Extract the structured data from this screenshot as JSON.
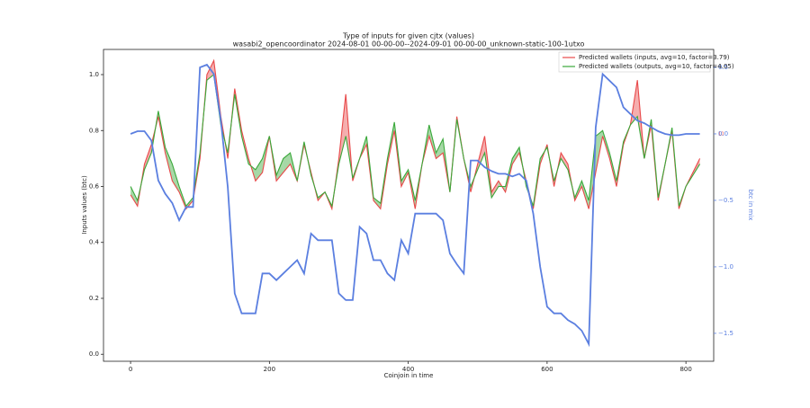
{
  "chart_data": {
    "type": "line",
    "title": "Type of inputs for given cjtx (values)",
    "subtitle": "wasabi2_opencoordinator 2024-08-01 00-00-00--2024-09-01 00-00-00_unknown-static-100-1utxo",
    "xlabel": "Coinjoin in time",
    "ylabel": "Inputs values (btc)",
    "y2label": "btc in mix",
    "extra_tick": "10",
    "legend": "upper right",
    "xlim": [
      -39,
      840
    ],
    "ylim": [
      -0.025,
      1.09
    ],
    "y2lim": [
      -1.71,
      0.635
    ],
    "xticks": [
      0,
      200,
      400,
      600,
      800
    ],
    "yticks": [
      {
        "value": 0,
        "label": "0.0"
      },
      0.2,
      0.4,
      0.6,
      0.8,
      {
        "value": 1,
        "label": "1.0"
      }
    ],
    "y2ticks": [
      0.5,
      {
        "value": 0,
        "label": "0.0"
      },
      {
        "value": -0.5,
        "label": "−0.5"
      },
      {
        "value": -1,
        "label": "−1.0"
      },
      {
        "value": -1.5,
        "label": "−1.5"
      }
    ],
    "x": [
      0,
      10,
      20,
      30,
      40,
      50,
      60,
      70,
      80,
      90,
      100,
      110,
      120,
      130,
      140,
      150,
      160,
      170,
      180,
      190,
      200,
      210,
      220,
      230,
      240,
      250,
      260,
      270,
      280,
      290,
      300,
      310,
      320,
      330,
      340,
      350,
      360,
      370,
      380,
      390,
      400,
      410,
      420,
      430,
      440,
      450,
      460,
      470,
      480,
      490,
      500,
      510,
      520,
      530,
      540,
      550,
      560,
      570,
      580,
      590,
      600,
      610,
      620,
      630,
      640,
      650,
      660,
      670,
      680,
      690,
      700,
      710,
      720,
      730,
      740,
      750,
      760,
      770,
      780,
      790,
      800,
      810,
      820
    ],
    "series": [
      {
        "name": "Predicted wallets (inputs, avg=10, factor=3.79)",
        "color": "#e8494a",
        "values": [
          0.57,
          0.53,
          0.68,
          0.75,
          0.85,
          0.72,
          0.62,
          0.58,
          0.52,
          0.55,
          0.7,
          1.0,
          1.05,
          0.85,
          0.7,
          0.95,
          0.8,
          0.7,
          0.62,
          0.65,
          0.78,
          0.62,
          0.65,
          0.68,
          0.62,
          0.75,
          0.65,
          0.55,
          0.58,
          0.52,
          0.7,
          0.93,
          0.62,
          0.7,
          0.75,
          0.55,
          0.52,
          0.68,
          0.8,
          0.6,
          0.65,
          0.52,
          0.68,
          0.78,
          0.7,
          0.72,
          0.58,
          0.85,
          0.7,
          0.58,
          0.68,
          0.78,
          0.58,
          0.62,
          0.58,
          0.68,
          0.72,
          0.62,
          0.52,
          0.68,
          0.75,
          0.6,
          0.72,
          0.68,
          0.55,
          0.6,
          0.52,
          0.65,
          0.78,
          0.7,
          0.6,
          0.75,
          0.82,
          0.98,
          0.7,
          0.82,
          0.55,
          0.68,
          0.8,
          0.52,
          0.6,
          0.65,
          0.7
        ]
      },
      {
        "name": "Predicted wallets (outputs, avg=10, factor=4.05)",
        "color": "#3aa83a",
        "values": [
          0.6,
          0.55,
          0.66,
          0.72,
          0.87,
          0.74,
          0.68,
          0.6,
          0.53,
          0.56,
          0.72,
          0.98,
          1.0,
          0.82,
          0.72,
          0.93,
          0.78,
          0.68,
          0.66,
          0.7,
          0.78,
          0.64,
          0.7,
          0.72,
          0.62,
          0.76,
          0.64,
          0.56,
          0.58,
          0.53,
          0.68,
          0.78,
          0.63,
          0.7,
          0.78,
          0.56,
          0.54,
          0.7,
          0.83,
          0.62,
          0.66,
          0.55,
          0.68,
          0.82,
          0.72,
          0.77,
          0.58,
          0.84,
          0.7,
          0.6,
          0.66,
          0.72,
          0.56,
          0.6,
          0.6,
          0.7,
          0.74,
          0.6,
          0.53,
          0.7,
          0.74,
          0.62,
          0.7,
          0.66,
          0.56,
          0.62,
          0.55,
          0.78,
          0.8,
          0.72,
          0.62,
          0.76,
          0.82,
          0.85,
          0.7,
          0.84,
          0.56,
          0.68,
          0.81,
          0.53,
          0.6,
          0.64,
          0.68
        ]
      },
      {
        "color": "#5b7fe0",
        "axis": "y2",
        "values": [
          0.0,
          0.02,
          0.02,
          -0.05,
          -0.35,
          -0.45,
          -0.52,
          -0.65,
          -0.55,
          -0.55,
          0.5,
          0.52,
          0.45,
          0.1,
          -0.4,
          -1.2,
          -1.35,
          -1.35,
          -1.35,
          -1.05,
          -1.05,
          -1.1,
          -1.05,
          -1.0,
          -0.95,
          -1.05,
          -0.75,
          -0.8,
          -0.8,
          -0.8,
          -1.2,
          -1.25,
          -1.25,
          -0.7,
          -0.75,
          -0.95,
          -0.95,
          -1.05,
          -1.1,
          -0.8,
          -0.9,
          -0.6,
          -0.6,
          -0.6,
          -0.6,
          -0.65,
          -0.9,
          -0.98,
          -1.05,
          -0.2,
          -0.2,
          -0.25,
          -0.28,
          -0.3,
          -0.3,
          -0.32,
          -0.3,
          -0.35,
          -0.6,
          -1.0,
          -1.3,
          -1.35,
          -1.35,
          -1.4,
          -1.43,
          -1.48,
          -1.58,
          0.05,
          0.45,
          0.4,
          0.35,
          0.2,
          0.15,
          0.1,
          0.08,
          0.05,
          0.02,
          0.0,
          -0.01,
          -0.01,
          0.0,
          0.0,
          0.0
        ]
      }
    ]
  }
}
